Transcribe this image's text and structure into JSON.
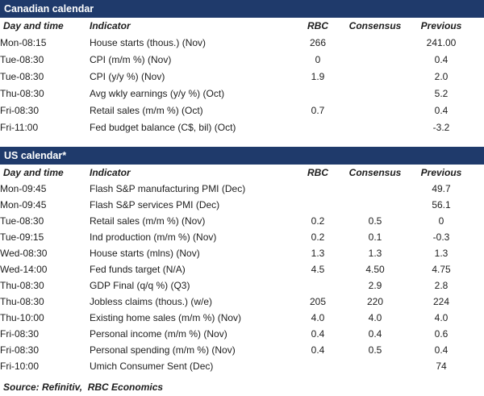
{
  "colors": {
    "header_bar": "#1f3a6b",
    "text": "#1d1d1d",
    "background": "#ffffff"
  },
  "canadian_calendar": {
    "title": "Canadian calendar",
    "columns": [
      "Day and time",
      "Indicator",
      "RBC",
      "Consensus",
      "Previous"
    ],
    "rows": [
      {
        "day": "Mon-08:15",
        "indicator": "House starts (thous.) (Nov)",
        "rbc": "266",
        "consensus": "",
        "previous": "241.00"
      },
      {
        "day": "Tue-08:30",
        "indicator": "CPI (m/m %) (Nov)",
        "rbc": "0",
        "consensus": "",
        "previous": "0.4"
      },
      {
        "day": "Tue-08:30",
        "indicator": "CPI (y/y %) (Nov)",
        "rbc": "1.9",
        "consensus": "",
        "previous": "2.0"
      },
      {
        "day": "Thu-08:30",
        "indicator": "Avg wkly earnings (y/y %) (Oct)",
        "rbc": "",
        "consensus": "",
        "previous": "5.2"
      },
      {
        "day": "Fri-08:30",
        "indicator": "Retail sales (m/m %) (Oct)",
        "rbc": "0.7",
        "consensus": "",
        "previous": "0.4"
      },
      {
        "day": "Fri-11:00",
        "indicator": "Fed budget balance (C$, bil) (Oct)",
        "rbc": "",
        "consensus": "",
        "previous": "-3.2"
      }
    ]
  },
  "us_calendar": {
    "title": "US calendar*",
    "columns": [
      "Day and time",
      "Indicator",
      "RBC",
      "Consensus",
      "Previous"
    ],
    "rows": [
      {
        "day": "Mon-09:45",
        "indicator": "Flash S&P manufacturing PMI (Dec)",
        "rbc": "",
        "consensus": "",
        "previous": "49.7"
      },
      {
        "day": "Mon-09:45",
        "indicator": "Flash S&P services PMI (Dec)",
        "rbc": "",
        "consensus": "",
        "previous": "56.1"
      },
      {
        "day": "Tue-08:30",
        "indicator": "Retail sales (m/m %) (Nov)",
        "rbc": "0.2",
        "consensus": "0.5",
        "previous": "0"
      },
      {
        "day": "Tue-09:15",
        "indicator": "Ind production (m/m %) (Nov)",
        "rbc": "0.2",
        "consensus": "0.1",
        "previous": "-0.3"
      },
      {
        "day": "Wed-08:30",
        "indicator": "House starts (mlns) (Nov)",
        "rbc": "1.3",
        "consensus": "1.3",
        "previous": "1.3"
      },
      {
        "day": "Wed-14:00",
        "indicator": "Fed funds target (N/A)",
        "rbc": "4.5",
        "consensus": "4.50",
        "previous": "4.75"
      },
      {
        "day": "Thu-08:30",
        "indicator": "GDP Final (q/q %) (Q3)",
        "rbc": "",
        "consensus": "2.9",
        "previous": "2.8"
      },
      {
        "day": "Thu-08:30",
        "indicator": "Jobless claims (thous.) (w/e)",
        "rbc": "205",
        "consensus": "220",
        "previous": "224"
      },
      {
        "day": "Thu-10:00",
        "indicator": "Existing home sales (m/m %) (Nov)",
        "rbc": "4.0",
        "consensus": "4.0",
        "previous": "4.0"
      },
      {
        "day": "Fri-08:30",
        "indicator": "Personal income (m/m %) (Nov)",
        "rbc": "0.4",
        "consensus": "0.4",
        "previous": "0.6"
      },
      {
        "day": "Fri-08:30",
        "indicator": "Personal spending (m/m %) (Nov)",
        "rbc": "0.4",
        "consensus": "0.5",
        "previous": "0.4"
      },
      {
        "day": "Fri-10:00",
        "indicator": "Umich Consumer Sent (Dec)",
        "rbc": "",
        "consensus": "",
        "previous": "74"
      }
    ]
  },
  "footer": {
    "source": "Source: Refinitiv,  RBC Economics"
  }
}
